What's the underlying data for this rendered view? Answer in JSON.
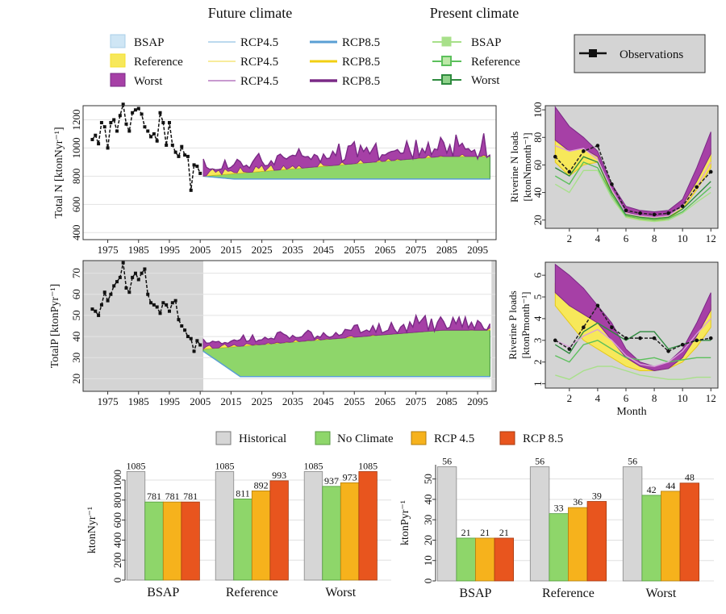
{
  "headers": {
    "future": "Future climate",
    "present": "Present climate"
  },
  "legend_future": {
    "areas": [
      "BSAP",
      "Reference",
      "Worst"
    ],
    "rcp45": [
      "RCP4.5",
      "RCP4.5",
      "RCP4.5"
    ],
    "rcp85": [
      "RCP8.5",
      "RCP8.5",
      "RCP8.5"
    ]
  },
  "legend_present": [
    "BSAP",
    "Reference",
    "Worst"
  ],
  "legend_obs": "Observations",
  "legend_bottom": [
    "Historical",
    "No Climate",
    "RCP 4.5",
    "RCP 8.5"
  ],
  "colors": {
    "bsap": "#cfe6f5",
    "reference": "#f7e85a",
    "worst": "#a640a6",
    "bsap_line": "#a8cfe8",
    "ref_line": "#f5df2a",
    "worst_line": "#7a2a86",
    "nc": "#8ed66a",
    "present_light": "#a8e08a",
    "present_mid": "#5cc05c",
    "present_dark": "#2e8a3e",
    "hist": "#d6d6d6",
    "rcp45": "#f6b21c",
    "rcp85": "#e8551e",
    "panel_bg": "#d4d4d4"
  },
  "chart_data": [
    {
      "id": "totalN",
      "type": "area",
      "ylabel": "Total N [ktonNyr⁻¹]",
      "ylim": [
        350,
        1300
      ],
      "yticks": [
        "400",
        "600",
        "800",
        "1000",
        "1200"
      ],
      "xticks": [
        "1975",
        "1985",
        "1995",
        "2005",
        "2015",
        "2025",
        "2035",
        "2045",
        "2055",
        "2065",
        "2075",
        "2085",
        "2095"
      ],
      "obs_years": [
        1970,
        1971,
        1972,
        1973,
        1974,
        1975,
        1976,
        1977,
        1978,
        1979,
        1980,
        1981,
        1982,
        1983,
        1984,
        1985,
        1986,
        1987,
        1988,
        1989,
        1990,
        1991,
        1992,
        1993,
        1994,
        1995,
        1996,
        1997,
        1998,
        1999,
        2000,
        2001,
        2002,
        2003,
        2004,
        2005
      ],
      "obs_values": [
        1060,
        1090,
        1030,
        1180,
        1150,
        1000,
        1180,
        1200,
        1120,
        1230,
        1310,
        1170,
        1120,
        1250,
        1270,
        1280,
        1240,
        1150,
        1120,
        1080,
        1100,
        1050,
        1250,
        1180,
        1020,
        1180,
        1020,
        970,
        940,
        1010,
        950,
        940,
        700,
        880,
        870,
        820
      ]
    },
    {
      "id": "totalP",
      "type": "area",
      "ylabel": "TotalP [ktonPyr⁻¹]",
      "ylim": [
        14,
        76
      ],
      "yticks": [
        "20",
        "30",
        "40",
        "50",
        "60",
        "70"
      ],
      "xticks": [
        "1975",
        "1985",
        "1995",
        "2005",
        "2015",
        "2025",
        "2035",
        "2045",
        "2055",
        "2065",
        "2075",
        "2085",
        "2095"
      ],
      "obs_years": [
        1970,
        1971,
        1972,
        1973,
        1974,
        1975,
        1976,
        1977,
        1978,
        1979,
        1980,
        1981,
        1982,
        1983,
        1984,
        1985,
        1986,
        1987,
        1988,
        1989,
        1990,
        1991,
        1992,
        1993,
        1994,
        1995,
        1996,
        1997,
        1998,
        1999,
        2000,
        2001,
        2002,
        2003,
        2004,
        2005
      ],
      "obs_values": [
        53,
        52,
        50,
        55,
        61,
        57,
        60,
        64,
        66,
        68,
        75,
        63,
        61,
        68,
        70,
        67,
        70,
        72,
        60,
        56,
        55,
        54,
        51,
        56,
        55,
        52,
        56,
        57,
        48,
        45,
        43,
        40,
        39,
        33,
        38,
        36
      ]
    },
    {
      "id": "riverN",
      "type": "line",
      "ylabel": "Riverine N loads [ktonNmonth⁻¹]",
      "ylim": [
        14,
        103
      ],
      "yticks": [
        "20",
        "40",
        "60",
        "80",
        "100"
      ],
      "xticks": [
        "2",
        "4",
        "6",
        "8",
        "10",
        "12"
      ],
      "months": [
        1,
        2,
        3,
        4,
        5,
        6,
        7,
        8,
        9,
        10,
        11,
        12
      ],
      "observations": [
        66,
        55,
        70,
        74,
        46,
        27,
        25,
        24,
        25,
        30,
        44,
        55
      ]
    },
    {
      "id": "riverP",
      "type": "line",
      "ylabel": "Riverine P loads [ktonPmonth⁻¹]",
      "xlabel": "Month",
      "ylim": [
        0.8,
        6.6
      ],
      "yticks": [
        "1",
        "2",
        "3",
        "4",
        "5",
        "6"
      ],
      "xticks": [
        "2",
        "4",
        "6",
        "8",
        "10",
        "12"
      ],
      "months": [
        1,
        2,
        3,
        4,
        5,
        6,
        7,
        8,
        9,
        10,
        11,
        12
      ],
      "observations": [
        3.0,
        2.6,
        3.6,
        4.6,
        3.6,
        3.1,
        3.1,
        3.1,
        2.5,
        2.8,
        3.0,
        3.1
      ]
    },
    {
      "id": "barN",
      "type": "bar",
      "ylabel": "ktonNyr⁻¹",
      "ylim": [
        0,
        1000
      ],
      "yticks": [
        "0",
        "200",
        "400",
        "600",
        "800",
        "1000"
      ],
      "categories": [
        "BSAP",
        "Reference",
        "Worst"
      ],
      "series": [
        {
          "name": "Historical",
          "values": [
            1085,
            1085,
            1085
          ]
        },
        {
          "name": "No Climate",
          "values": [
            781,
            811,
            937
          ]
        },
        {
          "name": "RCP 4.5",
          "values": [
            781,
            892,
            973
          ]
        },
        {
          "name": "RCP 8.5",
          "values": [
            781,
            993,
            1085
          ]
        }
      ]
    },
    {
      "id": "barP",
      "type": "bar",
      "ylabel": "ktonPyr⁻¹",
      "ylim": [
        0,
        57
      ],
      "yticks": [
        "0",
        "10",
        "20",
        "30",
        "40",
        "50"
      ],
      "categories": [
        "BSAP",
        "Reference",
        "Worst"
      ],
      "series": [
        {
          "name": "Historical",
          "values": [
            56,
            56,
            56
          ]
        },
        {
          "name": "No Climate",
          "values": [
            21,
            33,
            42
          ]
        },
        {
          "name": "RCP 4.5",
          "values": [
            21,
            36,
            44
          ]
        },
        {
          "name": "RCP 8.5",
          "values": [
            21,
            39,
            48
          ]
        }
      ]
    }
  ]
}
